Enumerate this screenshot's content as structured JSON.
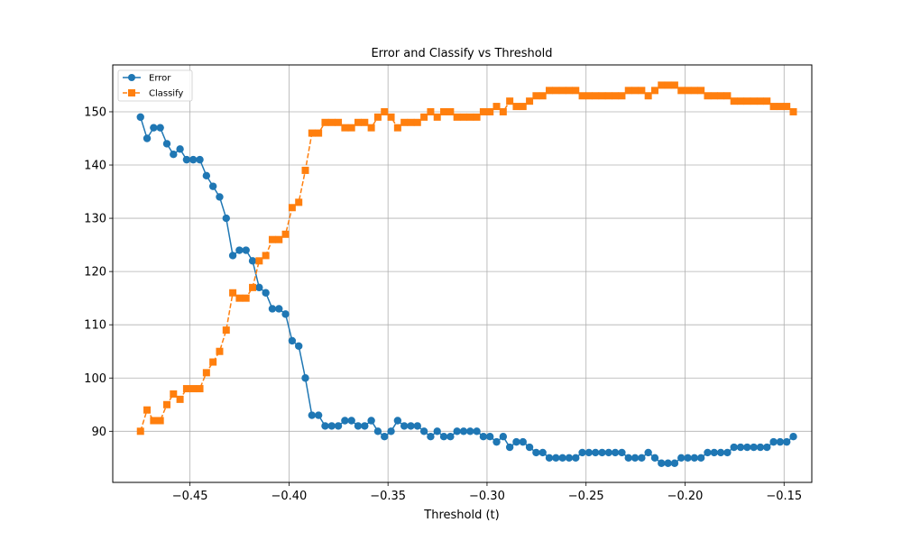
{
  "chart_data": {
    "type": "line",
    "title": "Error and Classify vs Threshold",
    "xlabel": "Threshold (t)",
    "ylabel": "",
    "xlim": [
      -0.489,
      -0.136
    ],
    "ylim": [
      80.4,
      158.8
    ],
    "grid": true,
    "legend_position": "upper-left",
    "x_ticks": [
      -0.45,
      -0.4,
      -0.35,
      -0.3,
      -0.25,
      -0.2,
      -0.15
    ],
    "x_tick_labels": [
      "−0.45",
      "−0.40",
      "−0.35",
      "−0.30",
      "−0.25",
      "−0.20",
      "−0.15"
    ],
    "y_ticks": [
      90,
      100,
      110,
      120,
      130,
      140,
      150
    ],
    "y_tick_labels": [
      "90",
      "100",
      "110",
      "120",
      "130",
      "140",
      "150"
    ],
    "x_start": -0.475,
    "x_step": 0.00333,
    "series": [
      {
        "name": "Error",
        "color": "#1f77b4",
        "marker": "circle",
        "linestyle": "solid",
        "values": [
          149,
          145,
          147,
          147,
          144,
          142,
          143,
          141,
          141,
          141,
          138,
          136,
          134,
          130,
          123,
          124,
          124,
          122,
          117,
          116,
          113,
          113,
          112,
          107,
          106,
          100,
          93,
          93,
          91,
          91,
          91,
          92,
          92,
          91,
          91,
          92,
          90,
          89,
          90,
          92,
          91,
          91,
          91,
          90,
          89,
          90,
          89,
          89,
          90,
          90,
          90,
          90,
          89,
          89,
          88,
          89,
          87,
          88,
          88,
          87,
          86,
          86,
          85,
          85,
          85,
          85,
          85,
          86,
          86,
          86,
          86,
          86,
          86,
          86,
          85,
          85,
          85,
          86,
          85,
          84,
          84,
          84,
          85,
          85,
          85,
          85,
          86,
          86,
          86,
          86,
          87,
          87,
          87,
          87,
          87,
          87,
          88,
          88,
          88,
          89
        ]
      },
      {
        "name": "Classify",
        "color": "#ff7f0e",
        "marker": "square",
        "linestyle": "dashed",
        "values": [
          90,
          94,
          92,
          92,
          95,
          97,
          96,
          98,
          98,
          98,
          101,
          103,
          105,
          109,
          116,
          115,
          115,
          117,
          122,
          123,
          126,
          126,
          127,
          132,
          133,
          139,
          146,
          146,
          148,
          148,
          148,
          147,
          147,
          148,
          148,
          147,
          149,
          150,
          149,
          147,
          148,
          148,
          148,
          149,
          150,
          149,
          150,
          150,
          149,
          149,
          149,
          149,
          150,
          150,
          151,
          150,
          152,
          151,
          151,
          152,
          153,
          153,
          154,
          154,
          154,
          154,
          154,
          153,
          153,
          153,
          153,
          153,
          153,
          153,
          154,
          154,
          154,
          153,
          154,
          155,
          155,
          155,
          154,
          154,
          154,
          154,
          153,
          153,
          153,
          153,
          152,
          152,
          152,
          152,
          152,
          152,
          151,
          151,
          151,
          150
        ]
      }
    ]
  }
}
